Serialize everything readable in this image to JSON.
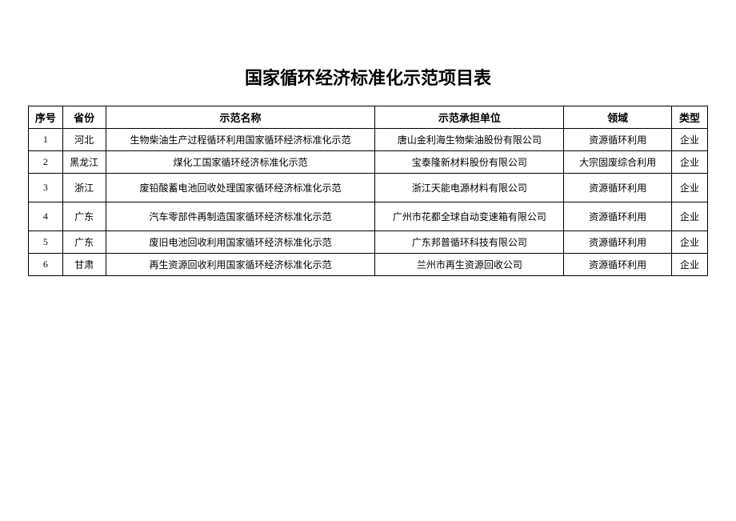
{
  "title": "国家循环经济标准化示范项目表",
  "columns": {
    "seq": "序号",
    "province": "省份",
    "name": "示范名称",
    "org": "示范承担单位",
    "field": "领域",
    "type": "类型"
  },
  "rows": [
    {
      "seq": "1",
      "province": "河北",
      "name": "生物柴油生产过程循环利用国家循环经济标准化示范",
      "org": "唐山金利海生物柴油股份有限公司",
      "field": "资源循环利用",
      "type": "企业",
      "tall": false
    },
    {
      "seq": "2",
      "province": "黑龙江",
      "name": "煤化工国家循环经济标准化示范",
      "org": "宝泰隆新材料股份有限公司",
      "field": "大宗固废综合利用",
      "type": "企业",
      "tall": false
    },
    {
      "seq": "3",
      "province": "浙江",
      "name": "废铅酸蓄电池回收处理国家循环经济标准化示范",
      "org": "浙江天能电源材料有限公司",
      "field": "资源循环利用",
      "type": "企业",
      "tall": true
    },
    {
      "seq": "4",
      "province": "广东",
      "name": "汽车零部件再制造国家循环经济标准化示范",
      "org": "广州市花都全球自动变速箱有限公司",
      "field": "资源循环利用",
      "type": "企业",
      "tall": true
    },
    {
      "seq": "5",
      "province": "广东",
      "name": "废旧电池回收利用国家循环经济标准化示范",
      "org": "广东邦普循环科技有限公司",
      "field": "资源循环利用",
      "type": "企业",
      "tall": false
    },
    {
      "seq": "6",
      "province": "甘肃",
      "name": "再生资源回收利用国家循环经济标准化示范",
      "org": "兰州市再生资源回收公司",
      "field": "资源循环利用",
      "type": "企业",
      "tall": false
    }
  ]
}
